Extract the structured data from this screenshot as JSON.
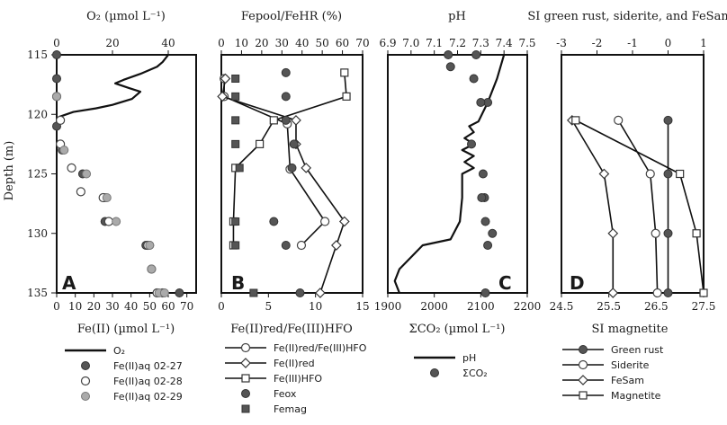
{
  "y_axis": {
    "label": "Depth (m)",
    "ticks": [
      "115",
      "120",
      "125",
      "130",
      "135"
    ],
    "range": [
      115,
      135
    ]
  },
  "chart_data": [
    {
      "panel": "A",
      "type": "scatter",
      "top_axis": {
        "label": "O₂ (µmol L⁻¹)",
        "ticks": [
          "0",
          "20",
          "40"
        ],
        "range": [
          0,
          50
        ]
      },
      "bottom_axis": {
        "label": "Fe(II) (µmol L⁻¹)",
        "ticks": [
          "0",
          "10",
          "20",
          "30",
          "40",
          "50",
          "60",
          "70"
        ],
        "range": [
          0,
          75
        ]
      },
      "series": [
        {
          "name": "O₂",
          "kind": "line",
          "axis": "top",
          "color": "#111111",
          "points": [
            [
              40,
              115
            ],
            [
              38,
              115.6
            ],
            [
              36,
              116
            ],
            [
              30,
              116.6
            ],
            [
              24,
              117.1
            ],
            [
              21,
              117.4
            ],
            [
              26,
              117.8
            ],
            [
              30,
              118.1
            ],
            [
              27,
              118.7
            ],
            [
              20,
              119.2
            ],
            [
              14,
              119.5
            ],
            [
              6,
              119.8
            ],
            [
              1,
              120.2
            ],
            [
              0,
              120.6
            ]
          ]
        },
        {
          "name": "Fe(II)aq 02-27",
          "kind": "marker",
          "marker": "filled",
          "color": "#555555",
          "points": [
            [
              0,
              115
            ],
            [
              0,
              117
            ],
            [
              0,
              121
            ],
            [
              3,
              123
            ],
            [
              14,
              125
            ],
            [
              26,
              127
            ],
            [
              26,
              129
            ],
            [
              48,
              131
            ],
            [
              50,
              131
            ],
            [
              66,
              135
            ]
          ]
        },
        {
          "name": "Fe(II)aq 02-28",
          "kind": "marker",
          "marker": "open",
          "color": "#ffffff",
          "points": [
            [
              0,
              118.5
            ],
            [
              2,
              120.5
            ],
            [
              2,
              122.5
            ],
            [
              8,
              124.5
            ],
            [
              13,
              126.5
            ],
            [
              25,
              127
            ],
            [
              28,
              129
            ],
            [
              49,
              131
            ],
            [
              51,
              133
            ],
            [
              54,
              135
            ],
            [
              57,
              135
            ]
          ]
        },
        {
          "name": "Fe(II)aq 02-29",
          "kind": "marker",
          "marker": "gray",
          "color": "#aaaaaa",
          "points": [
            [
              0,
              118.5
            ],
            [
              4,
              123
            ],
            [
              16,
              125
            ],
            [
              27,
              127
            ],
            [
              32,
              129
            ],
            [
              50,
              131
            ],
            [
              51,
              133
            ],
            [
              55,
              135
            ],
            [
              58,
              135
            ]
          ]
        }
      ]
    },
    {
      "panel": "B",
      "type": "scatter",
      "top_axis": {
        "label": "Fepool/FeHR (%)",
        "ticks": [
          "0",
          "10",
          "20",
          "30",
          "40",
          "50",
          "60",
          "70"
        ],
        "range": [
          0,
          70
        ]
      },
      "bottom_axis": {
        "label": "Fe(II)red/Fe(III)HFO",
        "ticks": [
          "0",
          "5",
          "10",
          "15"
        ],
        "range": [
          0,
          15
        ]
      },
      "series": [
        {
          "name": "Fe(II)red/Fe(III)HFO",
          "kind": "line",
          "marker": "circle",
          "axis": "bottom",
          "points": [
            [
              0.3,
              117
            ],
            [
              0.3,
              118.5
            ],
            [
              7,
              120.8
            ],
            [
              7.3,
              124.6
            ],
            [
              11,
              129
            ],
            [
              8.5,
              131
            ]
          ]
        },
        {
          "name": "Fe(II)red",
          "kind": "line",
          "marker": "diamond",
          "axis": "top",
          "points": [
            [
              2,
              117
            ],
            [
              0.5,
              118.5
            ],
            [
              37,
              120.5
            ],
            [
              37,
              122.5
            ],
            [
              42,
              124.5
            ],
            [
              61,
              129
            ],
            [
              57,
              131
            ],
            [
              49,
              135
            ]
          ]
        },
        {
          "name": "Fe(III)HFO",
          "kind": "line",
          "marker": "square",
          "axis": "top",
          "points": [
            [
              61,
              116.5
            ],
            [
              62,
              118.5
            ],
            [
              26,
              120.5
            ],
            [
              19,
              122.5
            ],
            [
              7,
              124.5
            ],
            [
              6,
              129
            ],
            [
              6,
              131
            ]
          ]
        },
        {
          "name": "Feox",
          "kind": "marker",
          "marker": "filled-circle",
          "axis": "top",
          "points": [
            [
              32,
              116.5
            ],
            [
              32,
              118.5
            ],
            [
              32,
              120.5
            ],
            [
              36,
              122.5
            ],
            [
              35,
              124.5
            ],
            [
              26,
              129
            ],
            [
              32,
              131
            ],
            [
              39,
              135
            ]
          ]
        },
        {
          "name": "Femag",
          "kind": "marker",
          "marker": "filled-square",
          "axis": "top",
          "points": [
            [
              7,
              117
            ],
            [
              7,
              118.5
            ],
            [
              7,
              120.5
            ],
            [
              7,
              122.5
            ],
            [
              9,
              124.5
            ],
            [
              7,
              129
            ],
            [
              7,
              131
            ],
            [
              16,
              135
            ]
          ]
        }
      ]
    },
    {
      "panel": "C",
      "type": "line",
      "top_axis": {
        "label": "pH",
        "ticks": [
          "6.9",
          "7.0",
          "7.1",
          "7.2",
          "7.3",
          "7.4",
          "7.5"
        ],
        "range": [
          6.9,
          7.5
        ]
      },
      "bottom_axis": {
        "label": "ΣCO₂ (µmol L⁻¹)",
        "ticks": [
          "1900",
          "2000",
          "2100",
          "2200"
        ],
        "range": [
          1900,
          2200
        ]
      },
      "series": [
        {
          "name": "pH",
          "kind": "line",
          "axis": "top",
          "points": [
            [
              7.4,
              115
            ],
            [
              7.37,
              117
            ],
            [
              7.33,
              119
            ],
            [
              7.29,
              120.6
            ],
            [
              7.25,
              121
            ],
            [
              7.27,
              121.5
            ],
            [
              7.23,
              122
            ],
            [
              7.27,
              122.5
            ],
            [
              7.22,
              123
            ],
            [
              7.27,
              123.5
            ],
            [
              7.23,
              124
            ],
            [
              7.27,
              124.5
            ],
            [
              7.22,
              125
            ],
            [
              7.22,
              127
            ],
            [
              7.21,
              129
            ],
            [
              7.17,
              130.5
            ],
            [
              7.05,
              131
            ],
            [
              6.95,
              133
            ],
            [
              6.93,
              134
            ],
            [
              6.95,
              135
            ]
          ]
        },
        {
          "name": "ΣCO₂",
          "kind": "marker",
          "marker": "filled-circle",
          "axis": "bottom",
          "points": [
            [
              2030,
              115
            ],
            [
              2035,
              116
            ],
            [
              2090,
              115
            ],
            [
              2085,
              117
            ],
            [
              2115,
              119
            ],
            [
              2100,
              119
            ],
            [
              2080,
              122.5
            ],
            [
              2105,
              125
            ],
            [
              2108,
              127
            ],
            [
              2102,
              127
            ],
            [
              2110,
              129
            ],
            [
              2125,
              130
            ],
            [
              2115,
              131
            ],
            [
              2110,
              135
            ]
          ]
        }
      ]
    },
    {
      "panel": "D",
      "type": "line",
      "top_axis": {
        "label": "SI green rust, siderite, and FeSam",
        "ticks": [
          "-3",
          "-2",
          "-1",
          "0",
          "1"
        ],
        "range": [
          -3,
          1
        ]
      },
      "bottom_axis": {
        "label": "SI magnetite",
        "ticks": [
          "24.5",
          "25.5",
          "26.5",
          "27.5"
        ],
        "range": [
          24.5,
          27.5
        ]
      },
      "series": [
        {
          "name": "Green rust",
          "marker": "filled-circle",
          "axis": "top",
          "points": [
            [
              0.0,
              120.5
            ],
            [
              0.0,
              125
            ],
            [
              0.0,
              130
            ],
            [
              0.0,
              135
            ]
          ]
        },
        {
          "name": "Siderite",
          "marker": "open-circle",
          "axis": "top",
          "points": [
            [
              -1.4,
              120.5
            ],
            [
              -0.5,
              125
            ],
            [
              -0.35,
              130
            ],
            [
              -0.3,
              135
            ]
          ]
        },
        {
          "name": "FeSam",
          "marker": "diamond",
          "axis": "top",
          "points": [
            [
              -2.7,
              120.5
            ],
            [
              -1.8,
              125
            ],
            [
              -1.55,
              130
            ],
            [
              -1.55,
              135
            ]
          ]
        },
        {
          "name": "Magnetite",
          "marker": "open-square",
          "axis": "bottom",
          "points": [
            [
              24.8,
              120.5
            ],
            [
              27.0,
              125
            ],
            [
              27.35,
              130
            ],
            [
              27.5,
              135
            ]
          ]
        }
      ]
    }
  ]
}
